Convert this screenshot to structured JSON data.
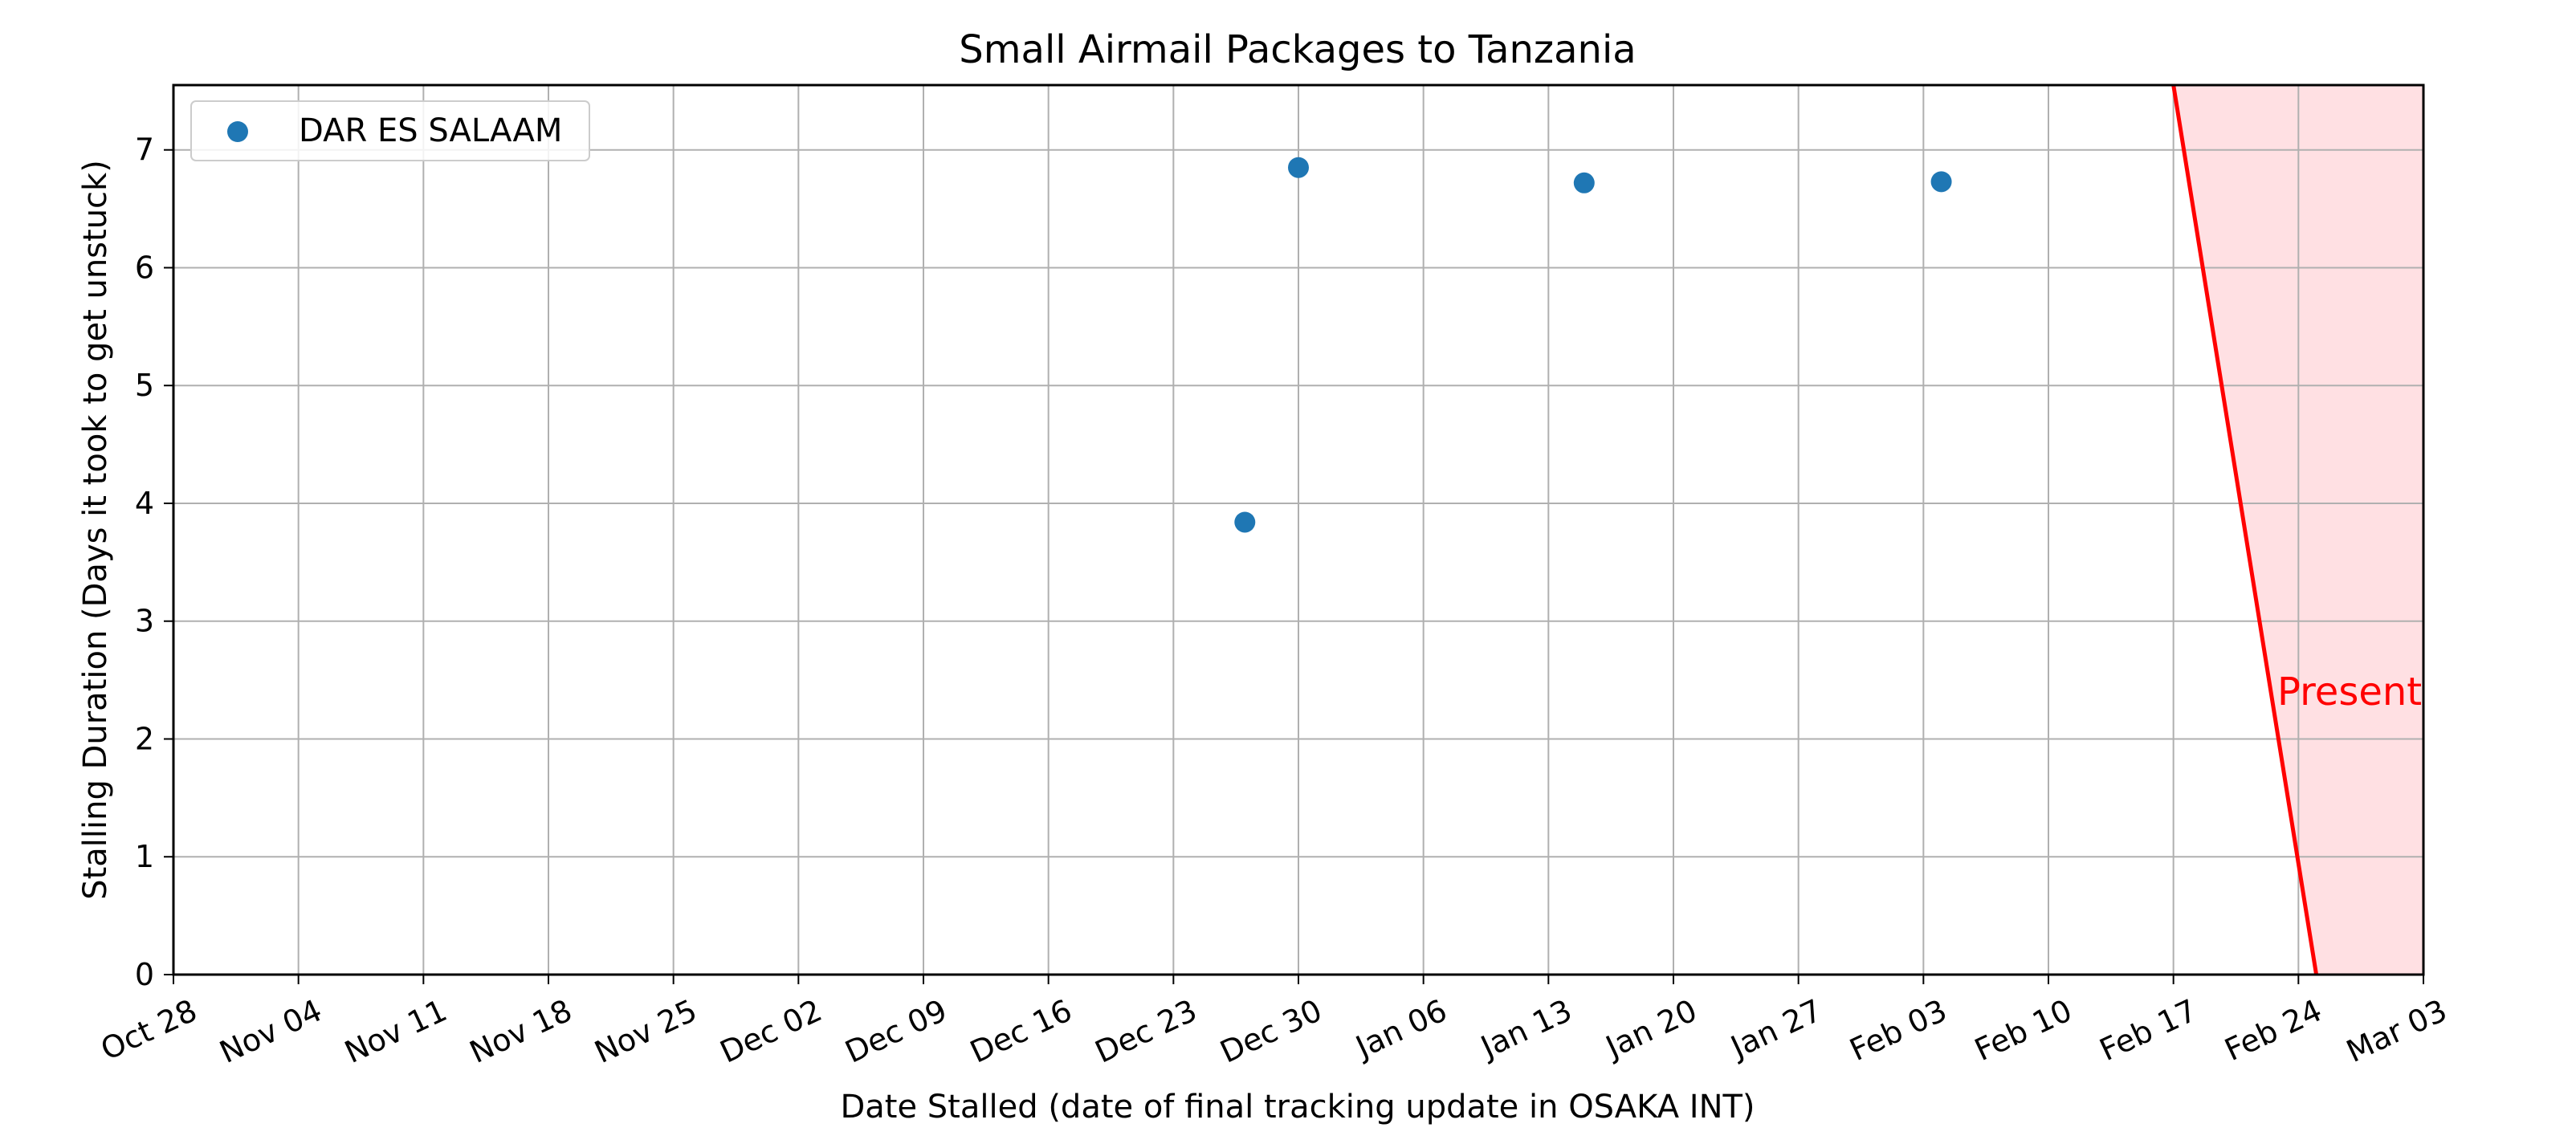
{
  "chart_data": {
    "type": "scatter",
    "title": "Small Airmail Packages to Tanzania",
    "xlabel": "Date Stalled (date of final tracking update in OSAKA INT)",
    "ylabel": "Stalling Duration (Days it took to get unstuck)",
    "xlim": [
      "2024-10-28",
      "2025-03-03"
    ],
    "ylim": [
      0,
      7.55
    ],
    "x_ticks": [
      "Oct 28",
      "Nov 04",
      "Nov 11",
      "Nov 18",
      "Nov 25",
      "Dec 02",
      "Dec 09",
      "Dec 16",
      "Dec 23",
      "Dec 30",
      "Jan 06",
      "Jan 13",
      "Jan 20",
      "Jan 27",
      "Feb 03",
      "Feb 10",
      "Feb 17",
      "Feb 24",
      "Mar 03"
    ],
    "y_ticks": [
      "0",
      "1",
      "2",
      "3",
      "4",
      "5",
      "6",
      "7"
    ],
    "grid": true,
    "legend_position": "upper-left",
    "series": [
      {
        "name": "DAR ES SALAAM",
        "color": "#1f77b4",
        "marker": "circle",
        "points": [
          {
            "x": "2024-12-27",
            "y": 3.84
          },
          {
            "x": "2024-12-30",
            "y": 6.85
          },
          {
            "x": "2025-01-15",
            "y": 6.72
          },
          {
            "x": "2025-02-04",
            "y": 6.73
          }
        ]
      }
    ],
    "present_line": {
      "label": "Present",
      "color": "#ff0000",
      "top": {
        "x": "2025-02-17",
        "y": 7.55
      },
      "bottom": {
        "x": "2025-02-25",
        "y": 0
      },
      "shade_color": "#ffe0e3"
    }
  }
}
